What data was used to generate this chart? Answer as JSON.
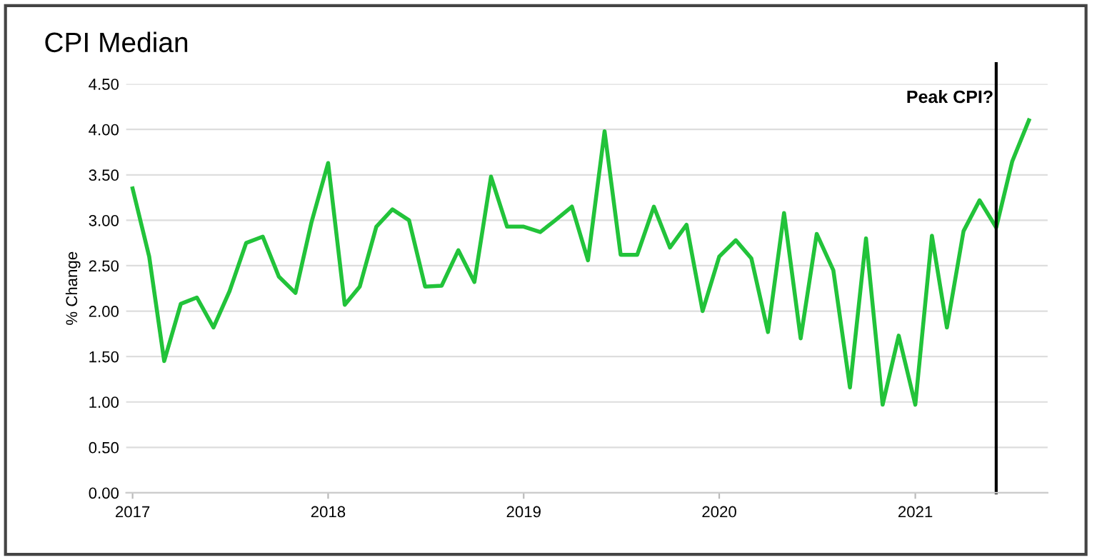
{
  "chart_data": {
    "type": "line",
    "title": "CPI Median",
    "ylabel": "% Change",
    "x": [
      "2017-01",
      "2017-02",
      "2017-03",
      "2017-04",
      "2017-05",
      "2017-06",
      "2017-07",
      "2017-08",
      "2017-09",
      "2017-10",
      "2017-11",
      "2017-12",
      "2018-01",
      "2018-02",
      "2018-03",
      "2018-04",
      "2018-05",
      "2018-06",
      "2018-07",
      "2018-08",
      "2018-09",
      "2018-10",
      "2018-11",
      "2018-12",
      "2019-01",
      "2019-02",
      "2019-03",
      "2019-04",
      "2019-05",
      "2019-06",
      "2019-07",
      "2019-08",
      "2019-09",
      "2019-10",
      "2019-11",
      "2019-12",
      "2020-01",
      "2020-02",
      "2020-03",
      "2020-04",
      "2020-05",
      "2020-06",
      "2020-07",
      "2020-08",
      "2020-09",
      "2020-10",
      "2020-11",
      "2020-12",
      "2021-01",
      "2021-02",
      "2021-03",
      "2021-04",
      "2021-05",
      "2021-06",
      "2021-07",
      "2021-08"
    ],
    "series": [
      {
        "color": "#22c33a",
        "values": [
          3.35,
          2.6,
          1.45,
          2.08,
          2.15,
          1.82,
          2.22,
          2.75,
          2.82,
          2.38,
          2.2,
          2.98,
          3.63,
          2.07,
          2.27,
          2.93,
          3.12,
          3.0,
          2.27,
          2.28,
          2.67,
          2.32,
          3.48,
          2.93,
          2.93,
          2.87,
          3.0,
          3.15,
          2.56,
          3.98,
          2.62,
          2.62,
          3.15,
          2.7,
          2.95,
          2.0,
          2.6,
          2.78,
          2.58,
          1.77,
          3.08,
          1.7,
          2.85,
          2.45,
          1.16,
          2.8,
          0.97,
          1.73,
          0.97,
          2.83,
          1.82,
          2.88,
          3.22,
          2.92,
          3.65,
          4.1
        ]
      }
    ],
    "xlim": [
      "2016-12-20",
      "2021-09-05"
    ],
    "xticks": [
      {
        "value": "2017-01-01",
        "label": "2017"
      },
      {
        "value": "2018-01-01",
        "label": "2018"
      },
      {
        "value": "2019-01-01",
        "label": "2019"
      },
      {
        "value": "2020-01-01",
        "label": "2020"
      },
      {
        "value": "2021-01-01",
        "label": "2021"
      }
    ],
    "ylim": [
      0,
      4.5
    ],
    "yticks": [
      {
        "value": 0,
        "label": "0.00"
      },
      {
        "value": 0.5,
        "label": "0.50"
      },
      {
        "value": 1,
        "label": "1.00"
      },
      {
        "value": 1.5,
        "label": "1.50"
      },
      {
        "value": 2,
        "label": "2.00"
      },
      {
        "value": 2.5,
        "label": "2.50"
      },
      {
        "value": 3,
        "label": "3.00"
      },
      {
        "value": 3.5,
        "label": "3.50"
      },
      {
        "value": 4,
        "label": "4.00"
      },
      {
        "value": 4.5,
        "label": "4.50"
      }
    ],
    "ref_lines": [
      {
        "axis": "x",
        "value": "2021-06",
        "label": "Peak CPI?",
        "color": "#000000"
      }
    ],
    "grid": "y",
    "legend": false,
    "marker": "none",
    "line_style": "solid"
  }
}
